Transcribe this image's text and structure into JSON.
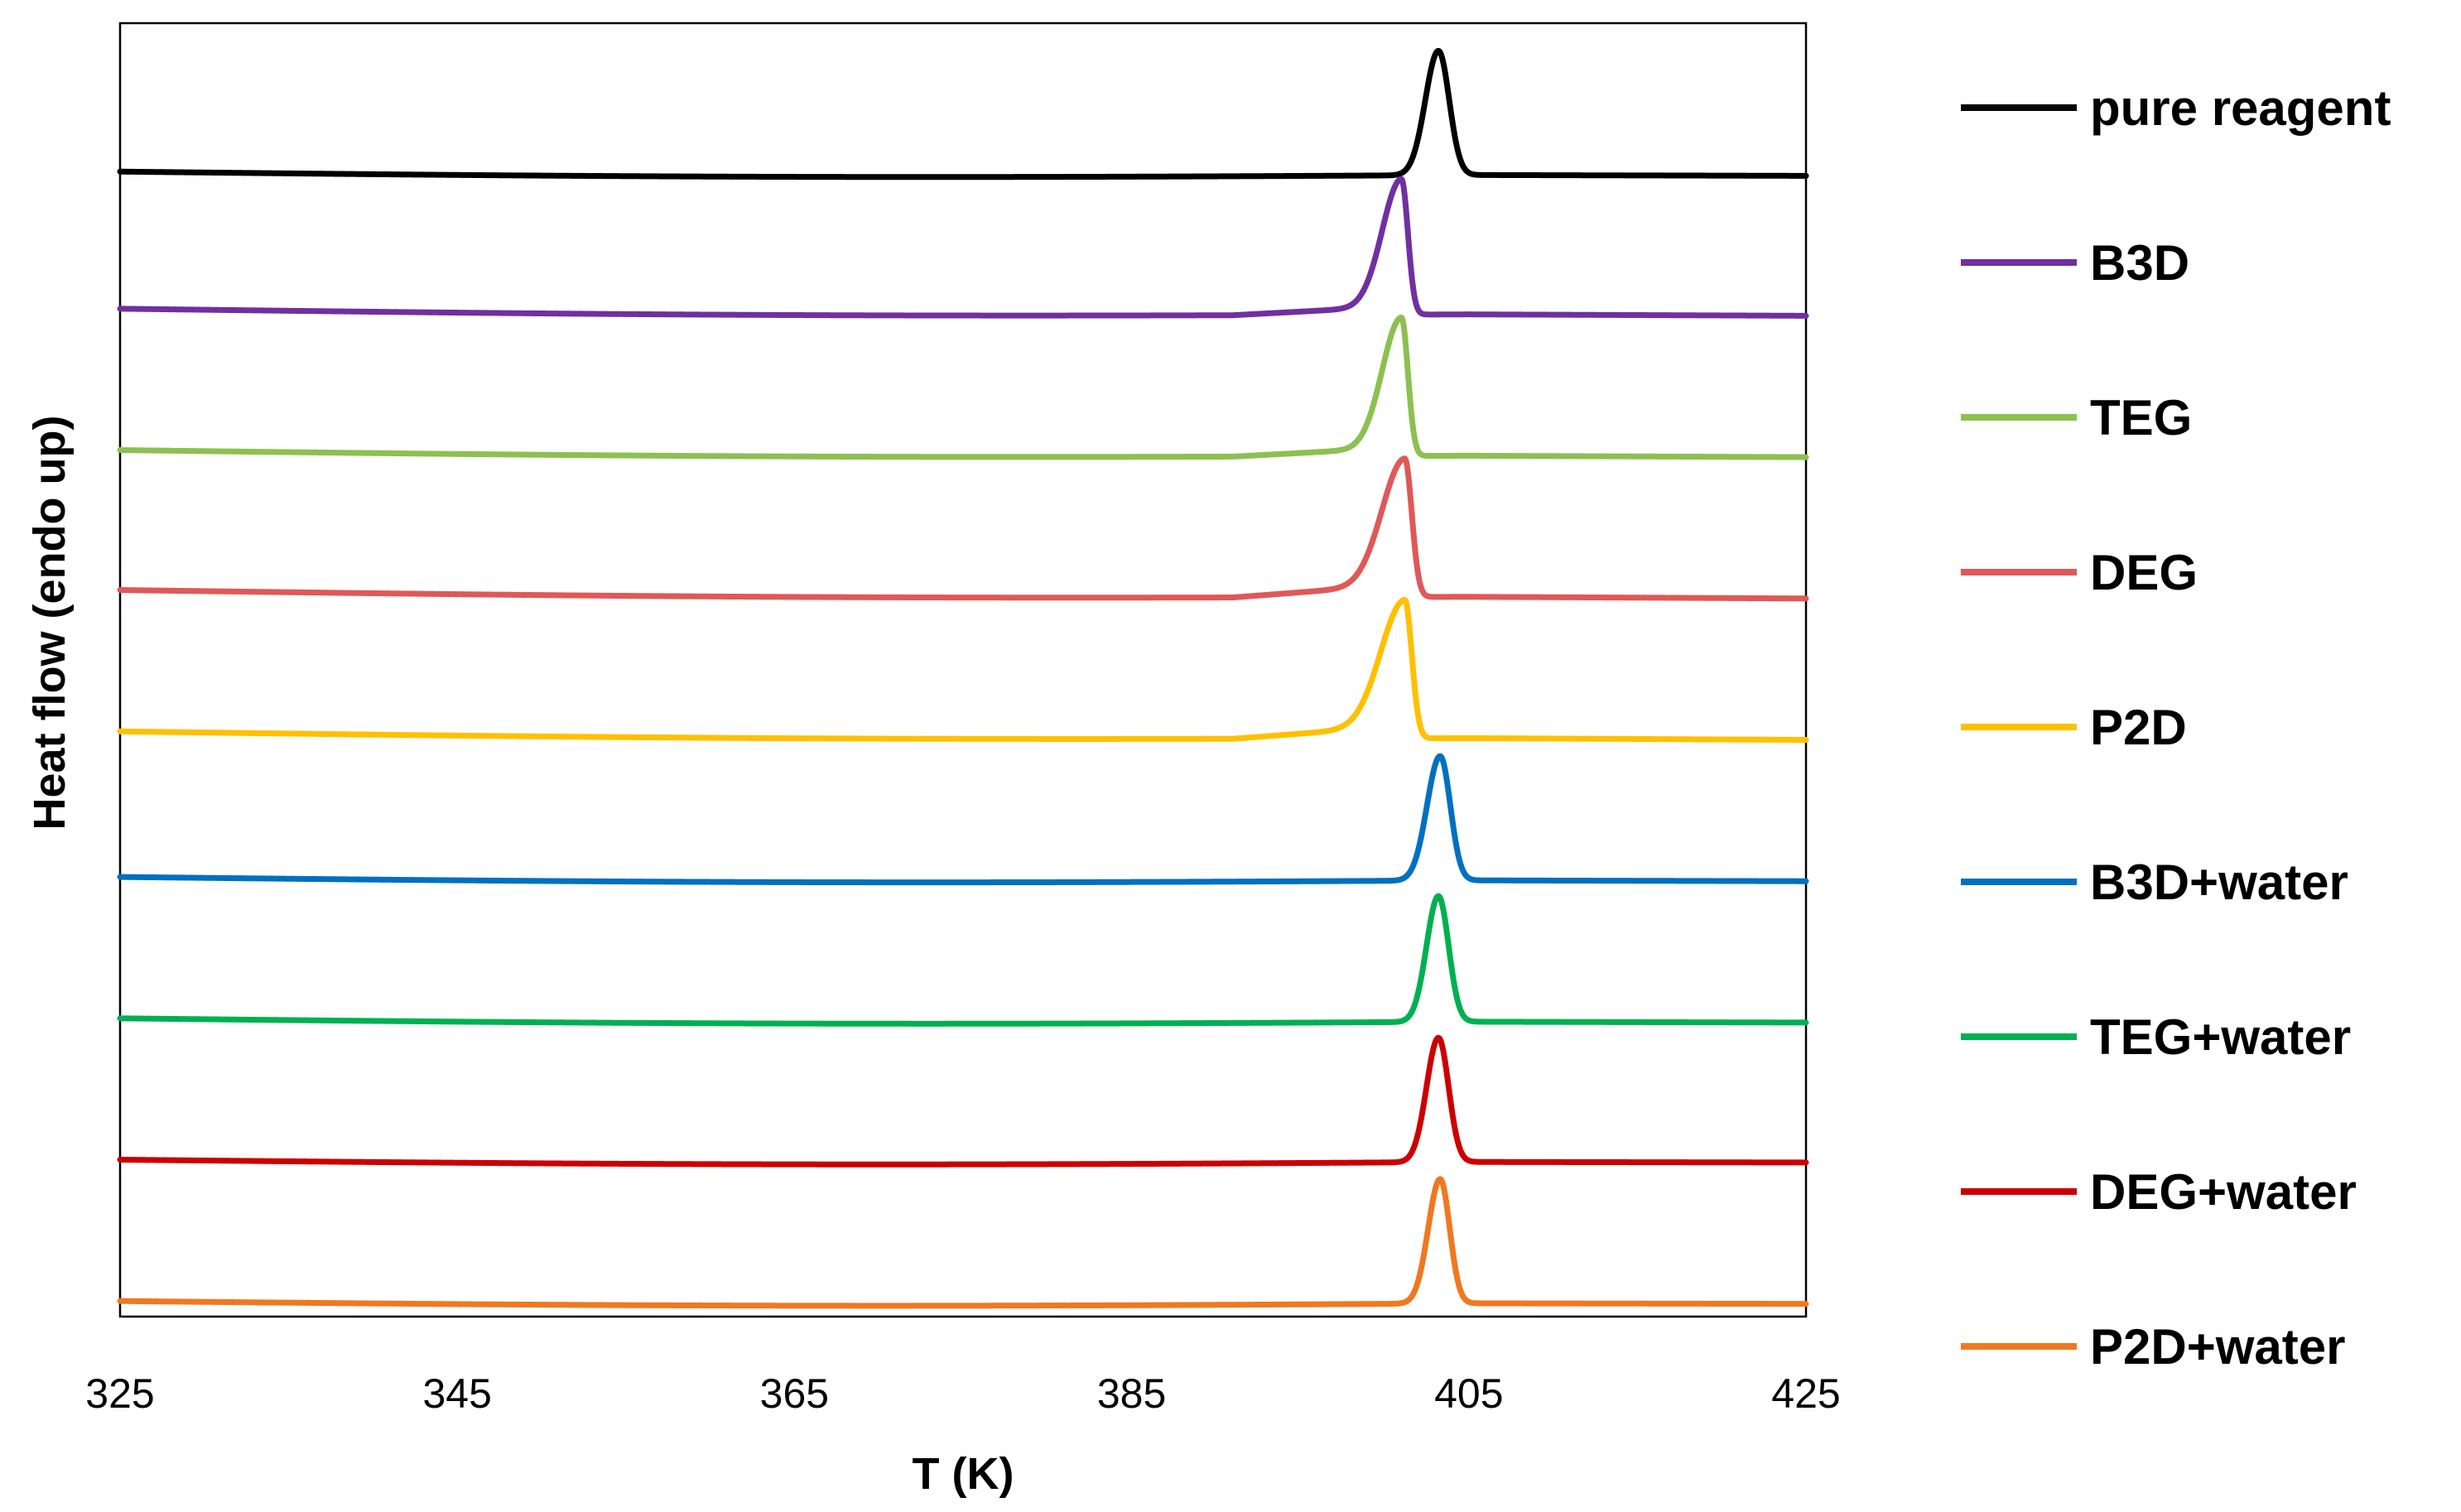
{
  "chart_data": {
    "type": "line",
    "title": "",
    "xlabel": "T (K)",
    "ylabel": "Heat flow (endo up)",
    "xlim": [
      325,
      425
    ],
    "x_ticks": [
      325,
      345,
      365,
      385,
      405,
      425
    ],
    "y_ticks_shown": false,
    "grid": false,
    "legend_position": "right",
    "series": [
      {
        "name": "pure reagent",
        "color": "#000000",
        "baseline_start": 8.95,
        "baseline_end": 8.92,
        "peak_T": 403.2,
        "peak_height": 0.88,
        "peak_width_left": 1.1,
        "peak_width_right": 0.9,
        "shoulder_start": 398,
        "shoulder_height": 0.0
      },
      {
        "name": "B3D",
        "color": "#7030A0",
        "baseline_start": 7.98,
        "baseline_end": 7.93,
        "peak_T": 401.0,
        "peak_height": 0.9,
        "peak_width_left": 1.6,
        "peak_width_right": 0.55,
        "shoulder_start": 391,
        "shoulder_height": 0.06
      },
      {
        "name": "TEG",
        "color": "#8DC050",
        "baseline_start": 6.98,
        "baseline_end": 6.93,
        "peak_T": 401.0,
        "peak_height": 0.92,
        "peak_width_left": 1.6,
        "peak_width_right": 0.55,
        "shoulder_start": 391,
        "shoulder_height": 0.06
      },
      {
        "name": "DEG",
        "color": "#E05858",
        "baseline_start": 5.99,
        "baseline_end": 5.93,
        "peak_T": 401.2,
        "peak_height": 0.89,
        "peak_width_left": 1.9,
        "peak_width_right": 0.6,
        "shoulder_start": 391,
        "shoulder_height": 0.09
      },
      {
        "name": "P2D",
        "color": "#FFC000",
        "baseline_start": 4.99,
        "baseline_end": 4.93,
        "peak_T": 401.2,
        "peak_height": 0.89,
        "peak_width_left": 2.0,
        "peak_width_right": 0.6,
        "shoulder_start": 391,
        "shoulder_height": 0.09
      },
      {
        "name": "B3D+water",
        "color": "#0070C0",
        "baseline_start": 3.96,
        "baseline_end": 3.93,
        "peak_T": 403.3,
        "peak_height": 0.88,
        "peak_width_left": 1.1,
        "peak_width_right": 0.85,
        "shoulder_start": 398,
        "shoulder_height": 0.0
      },
      {
        "name": "TEG+water",
        "color": "#00B050",
        "baseline_start": 2.96,
        "baseline_end": 2.93,
        "peak_T": 403.2,
        "peak_height": 0.89,
        "peak_width_left": 1.0,
        "peak_width_right": 0.85,
        "shoulder_start": 398,
        "shoulder_height": 0.0
      },
      {
        "name": "DEG+water",
        "color": "#CC0000",
        "baseline_start": 1.96,
        "baseline_end": 1.94,
        "peak_T": 403.2,
        "peak_height": 0.88,
        "peak_width_left": 1.0,
        "peak_width_right": 0.85,
        "shoulder_start": 398,
        "shoulder_height": 0.0
      },
      {
        "name": "P2D+water",
        "color": "#F07820",
        "baseline_start": 0.96,
        "baseline_end": 0.94,
        "peak_T": 403.3,
        "peak_height": 0.88,
        "peak_width_left": 1.0,
        "peak_width_right": 0.8,
        "shoulder_start": 398,
        "shoulder_height": 0.0
      }
    ]
  }
}
